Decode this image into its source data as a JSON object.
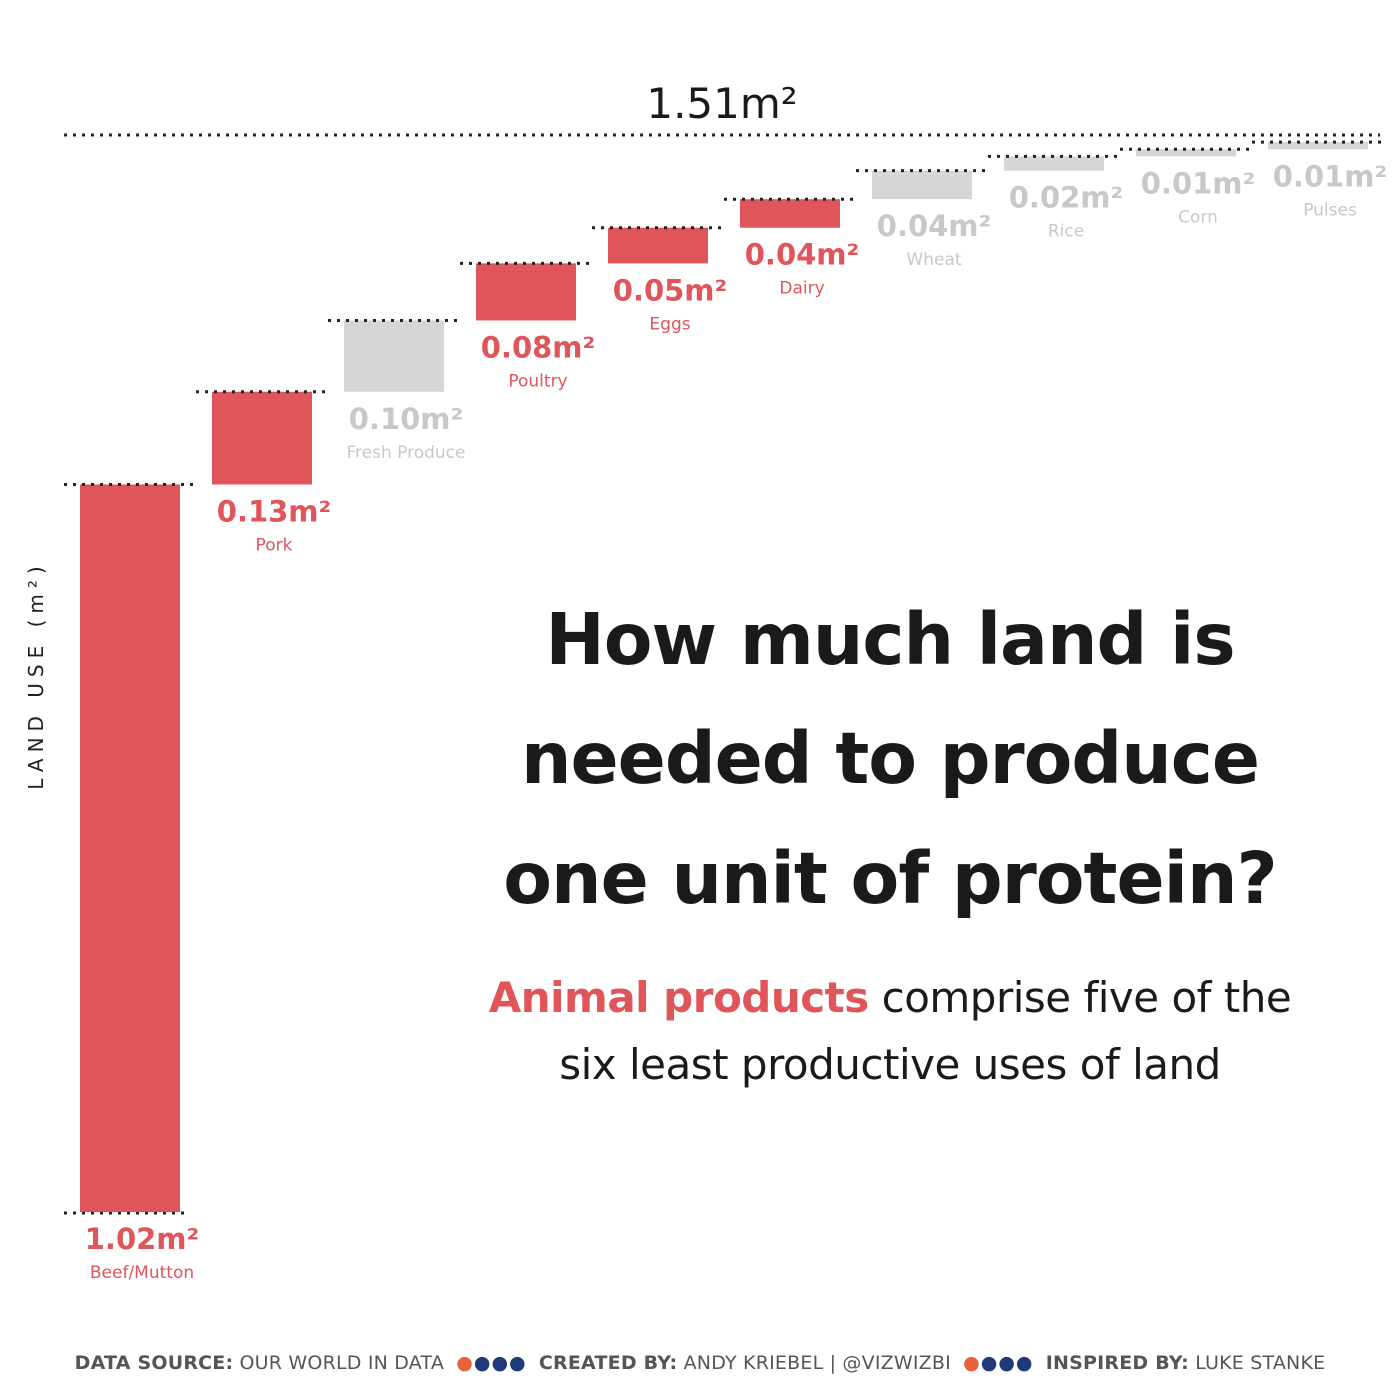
{
  "chart_data": {
    "type": "waterfall",
    "ylabel": "LAND USE (m²)",
    "total_label": "1.51m²",
    "total": 1.51,
    "categories": [
      "Beef/Mutton",
      "Pork",
      "Fresh Produce",
      "Poultry",
      "Eggs",
      "Dairy",
      "Wheat",
      "Rice",
      "Corn",
      "Pulses"
    ],
    "values": [
      1.02,
      0.13,
      0.1,
      0.08,
      0.05,
      0.04,
      0.04,
      0.02,
      0.01,
      0.01
    ],
    "value_labels": [
      "1.02m²",
      "0.13m²",
      "0.10m²",
      "0.08m²",
      "0.05m²",
      "0.04m²",
      "0.04m²",
      "0.02m²",
      "0.01m²",
      "0.01m²"
    ],
    "is_animal": [
      true,
      true,
      false,
      true,
      true,
      true,
      false,
      false,
      false,
      false
    ],
    "colors": {
      "animal": "#e0555a",
      "plant_bar": "#d6d6d6",
      "plant_text": "#c8c8c8"
    }
  },
  "title": "How much land is needed to produce one unit of protein?",
  "subtitle": {
    "accent": "Animal products",
    "rest": " comprise five of the six least productive uses of land"
  },
  "footer": {
    "source_label": "DATA SOURCE:",
    "source_value": "OUR WORLD IN DATA",
    "created_label": "CREATED BY:",
    "created_value": "ANDY KRIEBEL | @VIZWIZBI",
    "inspired_label": "INSPIRED BY:",
    "inspired_value": "LUKE STANKE"
  }
}
